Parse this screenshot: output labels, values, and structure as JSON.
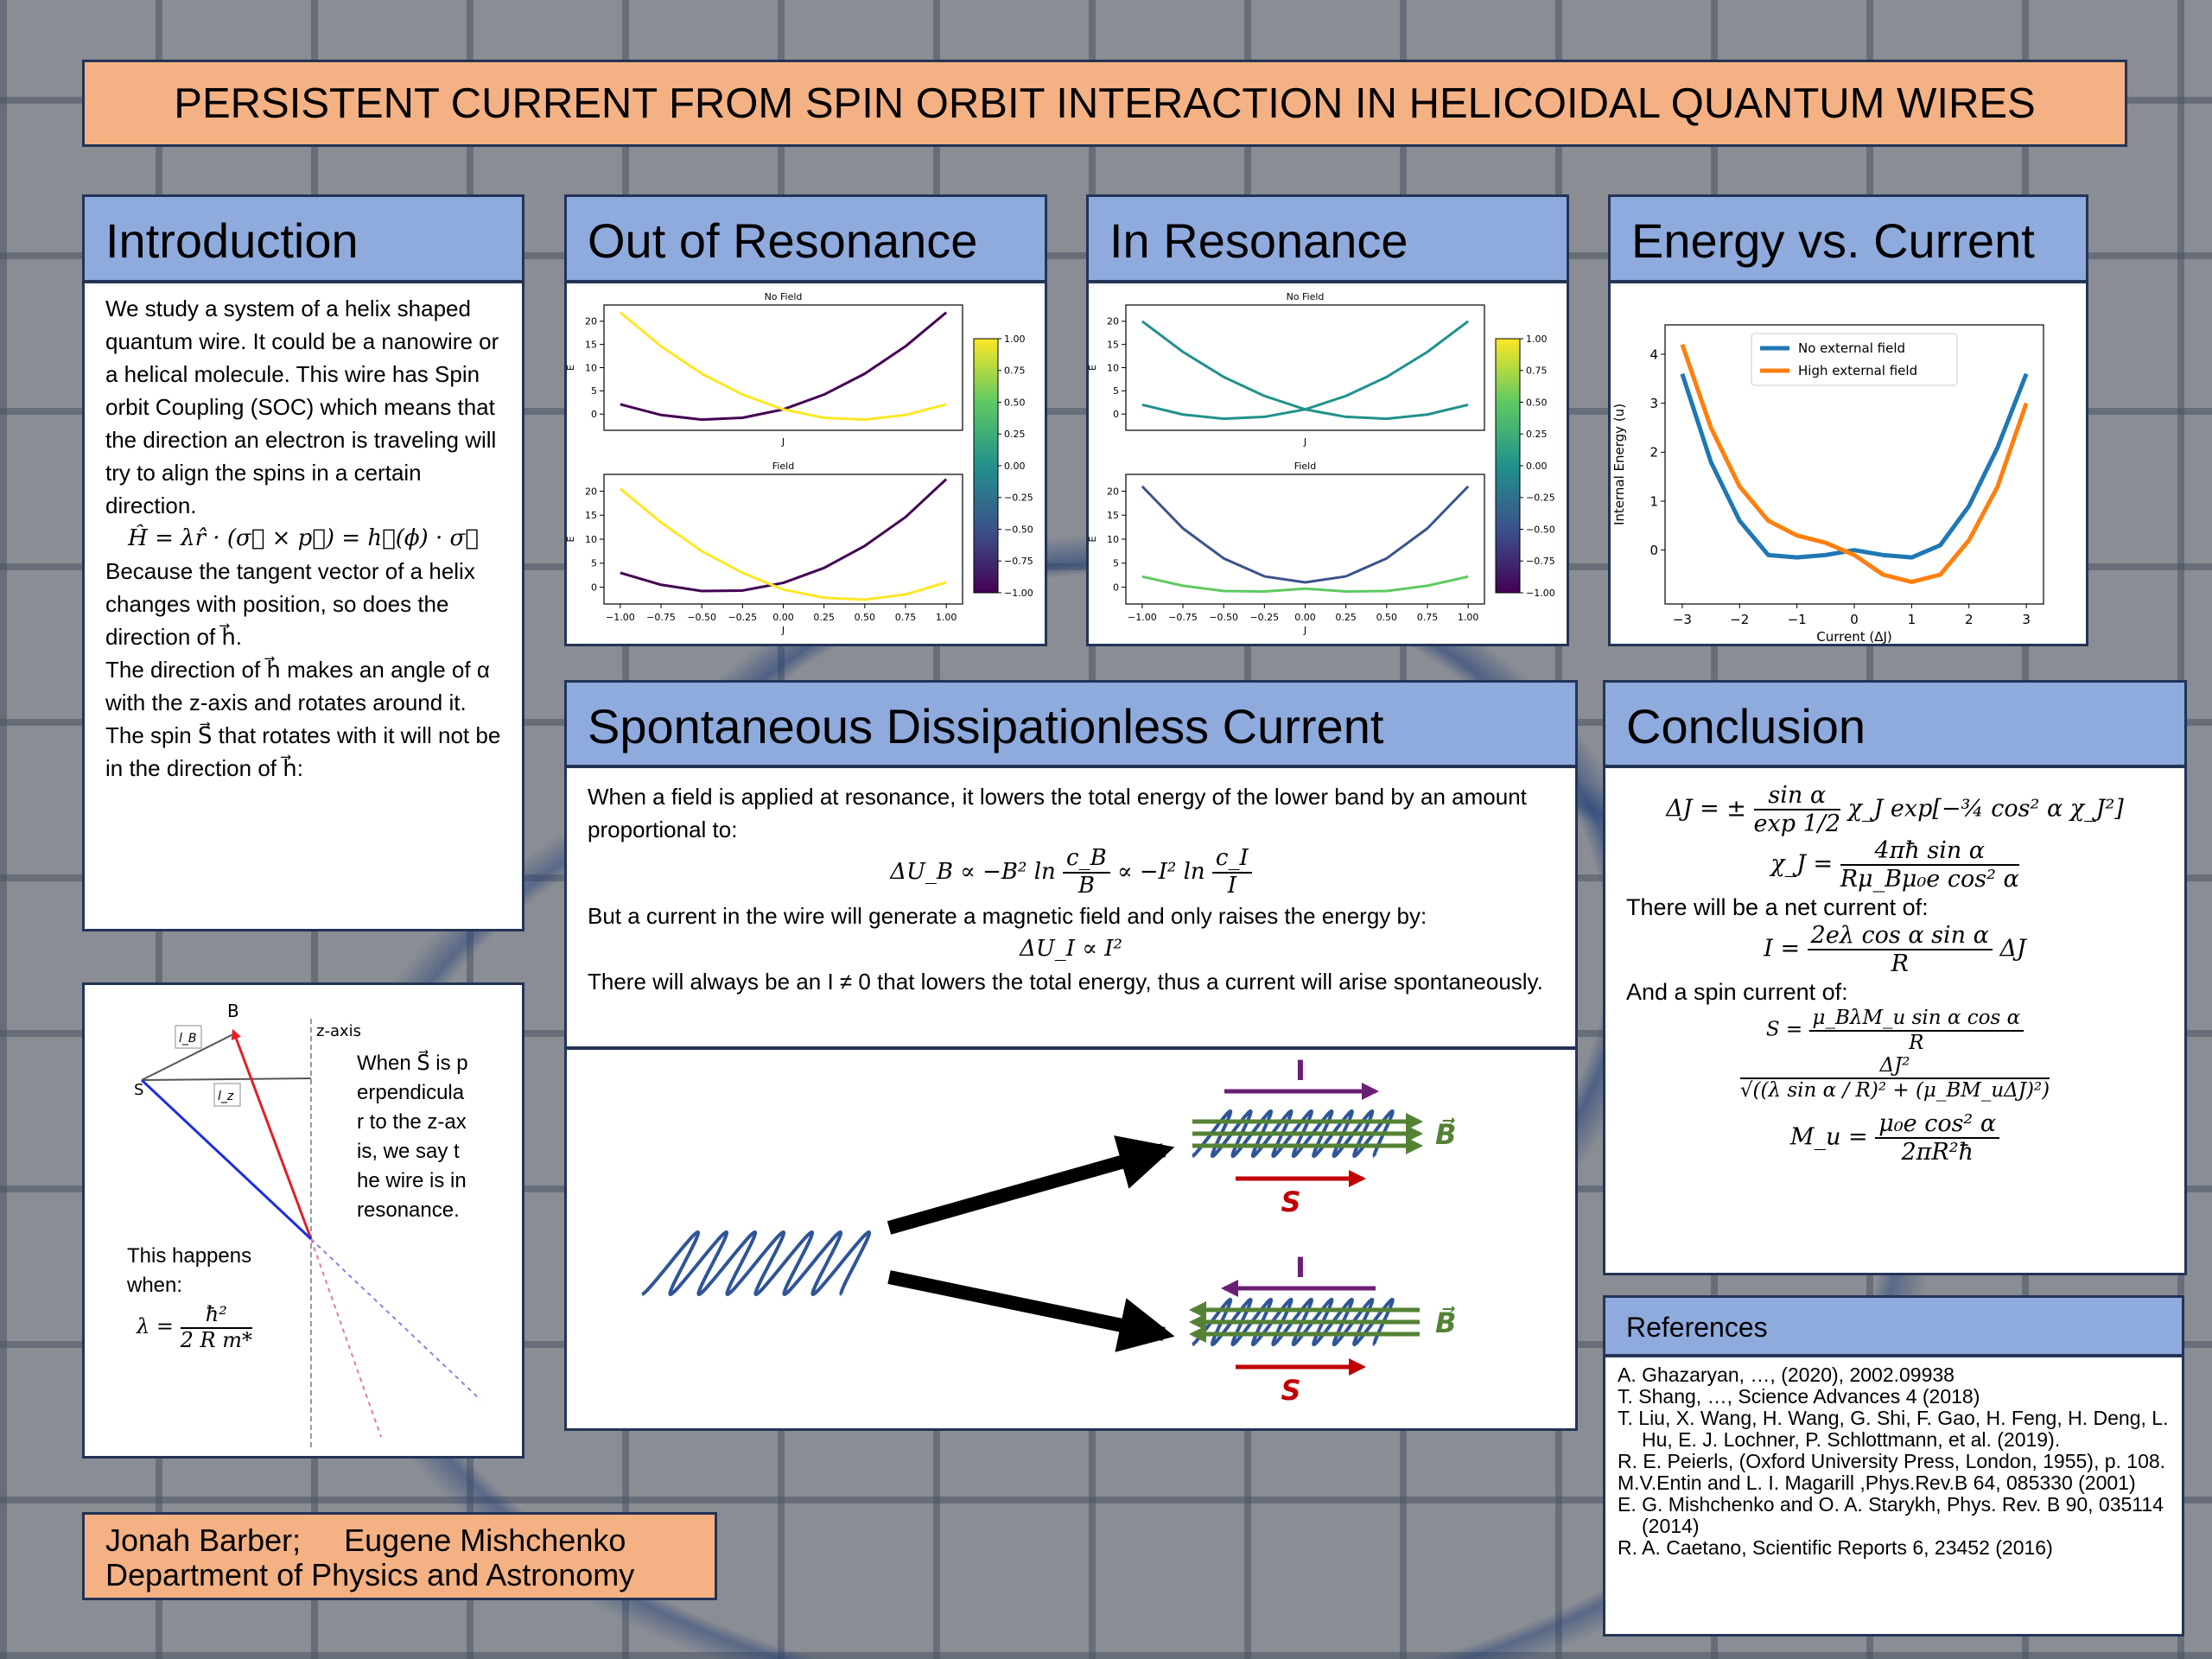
{
  "title": "PERSISTENT CURRENT FROM SPIN ORBIT INTERACTION IN HELICOIDAL QUANTUM WIRES",
  "introduction": {
    "heading": "Introduction",
    "p1": "We study a system of a helix shaped quantum wire. It could be a nanowire or a helical molecule. This wire has Spin orbit Coupling (SOC) which means that the direction an electron is traveling will try to align the spins in a certain direction.",
    "equation": "Ĥ = λr̂ · (σ⃗ × p⃗) = h⃗(ϕ) · σ⃗",
    "p2": "Because the tangent vector of a helix changes with position, so does the direction of h⃗.",
    "p3": "The direction of h⃗ makes an angle of α with the z-axis and rotates around it. The spin S⃗ that rotates with it will not be in the direction of h⃗:"
  },
  "diagram": {
    "b_label": "B",
    "z_label": "z-axis",
    "s_label": "S",
    "lb_label": "l_B",
    "lz_label": "l_z",
    "caption": "When S⃗ is perpendicular to the z-axis, we say the wire is in resonance.",
    "condition": "This happens when:",
    "lambda_lhs": "λ =",
    "lambda_num": "ħ²",
    "lambda_den": "2 R m*"
  },
  "out_of_resonance": {
    "heading": "Out of Resonance",
    "chart_data": [
      {
        "type": "line",
        "title": "No Field",
        "xlabel": "J",
        "ylabel": "E",
        "x": [
          -1,
          -0.75,
          -0.5,
          -0.25,
          0,
          0.25,
          0.5,
          0.75,
          1
        ],
        "series": [
          {
            "color": "#440154",
            "values": [
              2.1,
              -0.2,
              -1.2,
              -0.8,
              1.0,
              4.2,
              8.7,
              14.6,
              21.9
            ]
          },
          {
            "color": "#fde725",
            "values": [
              21.9,
              14.6,
              8.7,
              4.2,
              1.0,
              -0.8,
              -1.2,
              -0.2,
              2.1
            ]
          }
        ],
        "xlim": [
          -1.1,
          1.1
        ],
        "ylim": [
          -3.5,
          23.5
        ],
        "yticks": [
          0,
          5,
          10,
          15,
          20
        ]
      },
      {
        "type": "line",
        "title": "Field",
        "xlabel": "J",
        "ylabel": "E",
        "x": [
          -1,
          -0.75,
          -0.5,
          -0.25,
          0,
          0.25,
          0.5,
          0.75,
          1
        ],
        "series": [
          {
            "color": "#440154",
            "values": [
              3.0,
              0.5,
              -0.8,
              -0.7,
              0.9,
              4.0,
              8.6,
              14.6,
              22.5
            ]
          },
          {
            "color": "#fde725",
            "values": [
              20.5,
              13.5,
              7.5,
              3.0,
              -0.5,
              -2.2,
              -2.6,
              -1.5,
              1.0
            ]
          }
        ],
        "xlim": [
          -1.1,
          1.1
        ],
        "ylim": [
          -3.5,
          23.5
        ],
        "yticks": [
          0,
          5,
          10,
          15,
          20
        ],
        "xticks": [
          {
            "value": -1,
            "label": "−1.00"
          },
          {
            "value": -0.75,
            "label": "−0.75"
          },
          {
            "value": -0.5,
            "label": "−0.50"
          },
          {
            "value": -0.25,
            "label": "−0.25"
          },
          {
            "value": 0,
            "label": "0.00"
          },
          {
            "value": 0.25,
            "label": "0.25"
          },
          {
            "value": 0.5,
            "label": "0.50"
          },
          {
            "value": 0.75,
            "label": "0.75"
          },
          {
            "value": 1,
            "label": "1.00"
          }
        ]
      }
    ],
    "colorbar": {
      "clim": [
        -1,
        1
      ],
      "ticks": [
        {
          "value": 1,
          "label": "1.00"
        },
        {
          "value": 0.75,
          "label": "0.75"
        },
        {
          "value": 0.5,
          "label": "0.50"
        },
        {
          "value": 0.25,
          "label": "0.25"
        },
        {
          "value": 0,
          "label": "0.00"
        },
        {
          "value": -0.25,
          "label": "−0.25"
        },
        {
          "value": -0.5,
          "label": "−0.50"
        },
        {
          "value": -0.75,
          "label": "−0.75"
        },
        {
          "value": -1,
          "label": "−1.00"
        }
      ]
    }
  },
  "in_resonance": {
    "heading": "In Resonance",
    "chart_data": [
      {
        "type": "line",
        "title": "No Field",
        "xlabel": "J",
        "ylabel": "E",
        "x": [
          -1,
          -0.75,
          -0.5,
          -0.25,
          0,
          0.25,
          0.5,
          0.75,
          1
        ],
        "series": [
          {
            "color": "#21918c",
            "values": [
              2.0,
              -0.1,
              -1.0,
              -0.6,
              1.0,
              3.9,
              8.0,
              13.4,
              20.0
            ]
          },
          {
            "color": "#21918c",
            "values": [
              20.0,
              13.4,
              8.0,
              3.9,
              1.0,
              -0.6,
              -1.0,
              -0.1,
              2.0
            ]
          }
        ],
        "xlim": [
          -1.1,
          1.1
        ],
        "ylim": [
          -3.5,
          23.5
        ],
        "yticks": [
          0,
          5,
          10,
          15,
          20
        ]
      },
      {
        "type": "line",
        "title": "Field",
        "xlabel": "J",
        "ylabel": "E",
        "x": [
          -1,
          -0.75,
          -0.5,
          -0.25,
          0,
          0.25,
          0.5,
          0.75,
          1
        ],
        "series": [
          {
            "color": "#3b528b",
            "values": [
              21,
              12.25,
              6,
              2.25,
              1,
              2.25,
              6,
              12.25,
              21
            ]
          },
          {
            "color": "#5ec962",
            "values": [
              2.2,
              0.3,
              -0.8,
              -0.9,
              -0.3,
              -0.9,
              -0.8,
              0.3,
              2.2
            ]
          }
        ],
        "xlim": [
          -1.1,
          1.1
        ],
        "ylim": [
          -3.5,
          23.5
        ],
        "yticks": [
          0,
          5,
          10,
          15,
          20
        ],
        "xticks": [
          {
            "value": -1,
            "label": "−1.00"
          },
          {
            "value": -0.75,
            "label": "−0.75"
          },
          {
            "value": -0.5,
            "label": "−0.50"
          },
          {
            "value": -0.25,
            "label": "−0.25"
          },
          {
            "value": 0,
            "label": "0.00"
          },
          {
            "value": 0.25,
            "label": "0.25"
          },
          {
            "value": 0.5,
            "label": "0.50"
          },
          {
            "value": 0.75,
            "label": "0.75"
          },
          {
            "value": 1,
            "label": "1.00"
          }
        ]
      }
    ],
    "colorbar": {
      "clim": [
        -1,
        1
      ],
      "ticks": [
        {
          "value": 1,
          "label": "1.00"
        },
        {
          "value": 0.75,
          "label": "0.75"
        },
        {
          "value": 0.5,
          "label": "0.50"
        },
        {
          "value": 0.25,
          "label": "0.25"
        },
        {
          "value": 0,
          "label": "0.00"
        },
        {
          "value": -0.25,
          "label": "−0.25"
        },
        {
          "value": -0.5,
          "label": "−0.50"
        },
        {
          "value": -0.75,
          "label": "−0.75"
        },
        {
          "value": -1,
          "label": "−1.00"
        }
      ]
    }
  },
  "energy_vs_current": {
    "heading": "Energy vs. Current",
    "chart_data": {
      "type": "line",
      "xlabel": "Current (ΔJ)",
      "ylabel": "Internal Energy (u)",
      "legend": "upper center",
      "x": [
        -3,
        -2.5,
        -2,
        -1.5,
        -1,
        -0.5,
        0,
        0.5,
        1,
        1.5,
        2,
        2.5,
        3
      ],
      "series": [
        {
          "name": "No external field",
          "color": "#1f77b4",
          "values": [
            3.6,
            1.8,
            0.6,
            -0.1,
            -0.15,
            -0.1,
            0,
            -0.1,
            -0.15,
            0.1,
            0.9,
            2.1,
            3.6
          ]
        },
        {
          "name": "High external field",
          "color": "#ff7f0e",
          "values": [
            4.2,
            2.5,
            1.3,
            0.6,
            0.3,
            0.15,
            -0.1,
            -0.5,
            -0.65,
            -0.5,
            0.2,
            1.3,
            3.0
          ]
        }
      ],
      "xlim": [
        -3.3,
        3.3
      ],
      "ylim": [
        -1.1,
        4.6
      ],
      "xticks": [
        {
          "value": -3,
          "label": "−3"
        },
        {
          "value": -2,
          "label": "−2"
        },
        {
          "value": -1,
          "label": "−1"
        },
        0,
        1,
        2,
        3
      ],
      "yticks": [
        0,
        1,
        2,
        3,
        4
      ]
    }
  },
  "spontaneous": {
    "heading": "Spontaneous Dissipationless Current",
    "p1": "When a field is applied at resonance, it lowers the total energy of the lower band by an amount proportional to:",
    "eq1": {
      "a": "ΔU_B ∝ −B² ln",
      "f1": [
        "c_B",
        "B"
      ],
      "b": "∝ −I² ln",
      "f2": [
        "c_I",
        "I"
      ]
    },
    "p2": "But a current in the wire will generate a magnetic field and only raises the energy by:",
    "eq2": "ΔU_I ∝ I²",
    "p3": "There will always be an I ≠ 0 that lowers the total energy, thus a current will arise spontaneously.",
    "figure": {
      "i_label": "I",
      "b_label": "B⃗",
      "s_label": "S"
    }
  },
  "conclusion": {
    "heading": "Conclusion",
    "eq1": {
      "lhs": "ΔJ = ±",
      "num": "sin α",
      "den": "exp 1/2",
      "rhs": "χ_J exp[−¾ cos² α χ_J²]"
    },
    "eq2": {
      "lhs": "χ_J =",
      "num": "4πħ sin α",
      "den": "Rμ_Bμ₀e cos² α"
    },
    "t1": "There will be a net current of:",
    "eq3": {
      "lhs": "I =",
      "num": "2eλ cos α sin α",
      "den": "R",
      "rhs": "ΔJ"
    },
    "t2": "And a spin current of:",
    "eq4": {
      "lhs": "S =",
      "num": "μ_BλM_u sin α cos α",
      "den": "R",
      "num2": "ΔJ²",
      "den2": "√((λ sin α / R)² + (μ_BM_uΔJ)²)"
    },
    "eq5": {
      "lhs": "M_u =",
      "num": "μ₀e cos² α",
      "den": "2πR²ħ"
    }
  },
  "references": {
    "heading": "References",
    "items": [
      "A. Ghazaryan, …, (2020), 2002.09938",
      "T. Shang, …, Science Advances 4 (2018)",
      "T. Liu, X. Wang, H. Wang, G. Shi, F. Gao, H. Feng, H. Deng, L. Hu, E. J. Lochner, P. Schlottmann, et al. (2019).",
      "R. E. Peierls, (Oxford University Press, London, 1955), p. 108.",
      "M.V.Entin and L. I. Magarill ,Phys.Rev.B 64, 085330 (2001)",
      "E. G. Mishchenko and O. A. Starykh, Phys. Rev. B 90, 035114 (2014)",
      "R. A. Caetano, Scientific Reports 6, 23452 (2016)"
    ]
  },
  "authors": {
    "names": "Jonah Barber;     Eugene Mishchenko",
    "department": "Department of Physics and Astronomy"
  }
}
